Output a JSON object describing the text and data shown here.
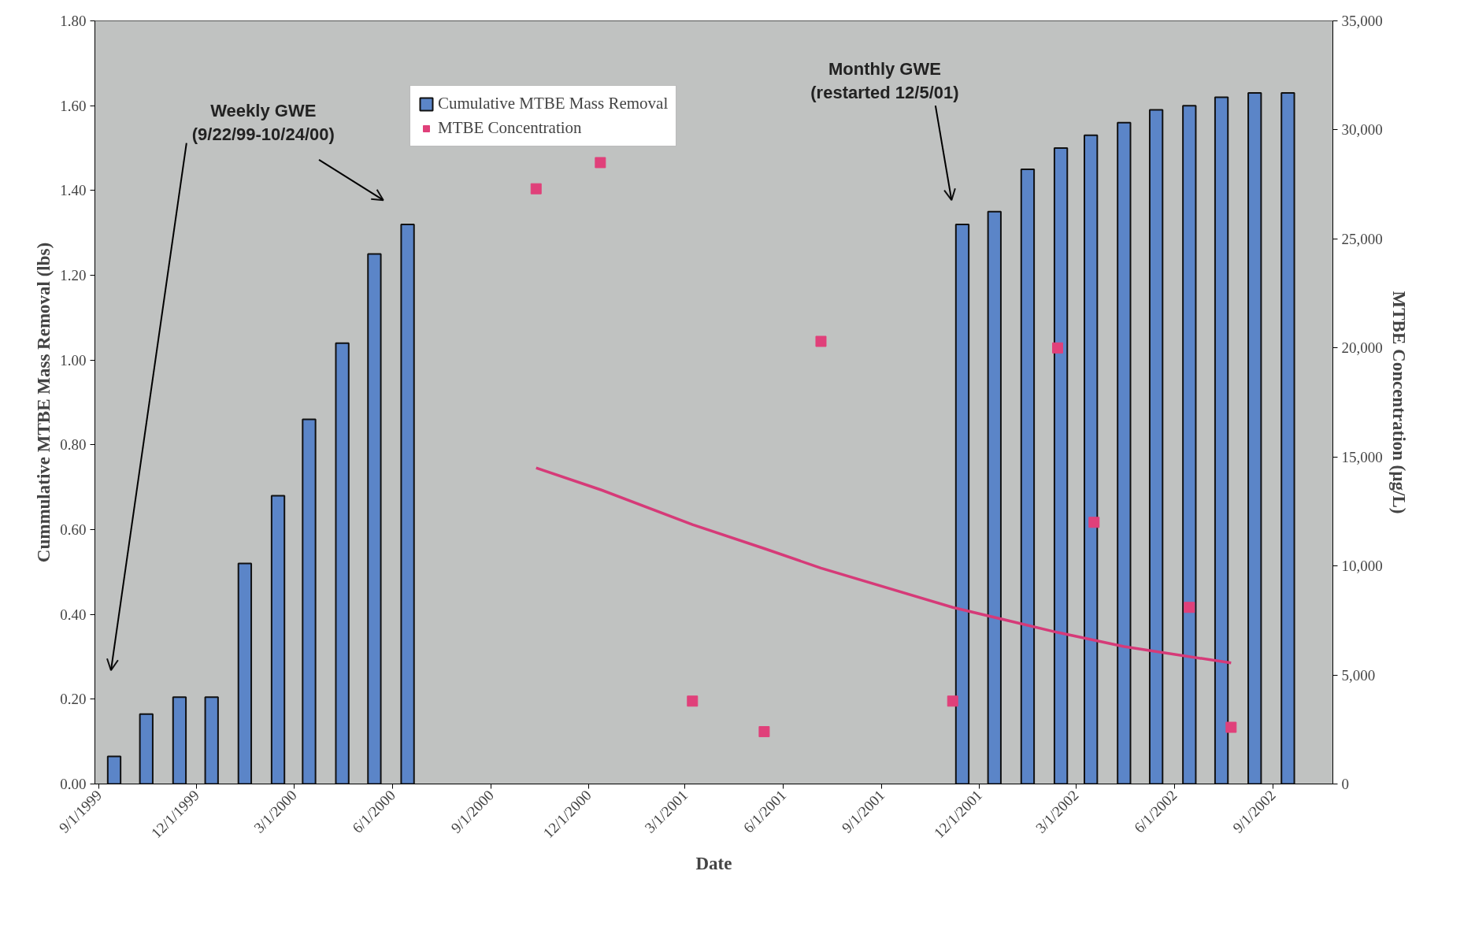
{
  "chart_data": {
    "type": "bar",
    "xlabel": "Date",
    "ylabel": "Cummulative MTBE Mass Removal (lbs)",
    "y2label": "MTBE Concentration (µg/L)",
    "xlim": [
      "1999-08-28",
      "2002-10-27"
    ],
    "xticks": [
      {
        "value": "1999-09-01",
        "label": "9/1/1999"
      },
      {
        "value": "1999-12-01",
        "label": "12/1/1999"
      },
      {
        "value": "2000-03-01",
        "label": "3/1/2000"
      },
      {
        "value": "2000-06-01",
        "label": "6/1/2000"
      },
      {
        "value": "2000-09-01",
        "label": "9/1/2000"
      },
      {
        "value": "2000-12-01",
        "label": "12/1/2000"
      },
      {
        "value": "2001-03-01",
        "label": "3/1/2001"
      },
      {
        "value": "2001-06-01",
        "label": "6/1/2001"
      },
      {
        "value": "2001-09-01",
        "label": "9/1/2001"
      },
      {
        "value": "2001-12-01",
        "label": "12/1/2001"
      },
      {
        "value": "2002-03-01",
        "label": "3/1/2002"
      },
      {
        "value": "2002-06-01",
        "label": "6/1/2002"
      },
      {
        "value": "2002-09-01",
        "label": "9/1/2002"
      }
    ],
    "ylim": [
      0,
      1.8
    ],
    "yticks": [
      {
        "value": 0,
        "label": "0.00"
      },
      {
        "value": 0.2,
        "label": "0.20"
      },
      {
        "value": 0.4,
        "label": "0.40"
      },
      {
        "value": 0.6,
        "label": "0.60"
      },
      {
        "value": 0.8,
        "label": "0.80"
      },
      {
        "value": 1.0,
        "label": "1.00"
      },
      {
        "value": 1.2,
        "label": "1.20"
      },
      {
        "value": 1.4,
        "label": "1.40"
      },
      {
        "value": 1.6,
        "label": "1.60"
      },
      {
        "value": 1.8,
        "label": "1.80"
      }
    ],
    "y2lim": [
      0,
      35000
    ],
    "y2ticks": [
      0,
      {
        "value": 5000,
        "label": "5,000"
      },
      {
        "value": 10000,
        "label": "10,000"
      },
      {
        "value": 15000,
        "label": "15,000"
      },
      {
        "value": 20000,
        "label": "20,000"
      },
      {
        "value": 25000,
        "label": "25,000"
      },
      {
        "value": 30000,
        "label": "30,000"
      },
      {
        "value": 35000,
        "label": "35,000"
      }
    ],
    "grid": false,
    "legend": "top",
    "series": [
      {
        "name": "Cumulative MTBE Mass Removal",
        "color": "#5b85c8",
        "x": [
          "1999-09-15",
          "1999-10-15",
          "1999-11-15",
          "1999-12-15",
          "2000-01-15",
          "2000-02-15",
          "2000-03-15",
          "2000-04-15",
          "2000-05-15",
          "2000-06-15",
          "2001-11-15",
          "2001-12-15",
          "2002-01-15",
          "2002-02-15",
          "2002-03-15",
          "2002-04-15",
          "2002-05-15",
          "2002-06-15",
          "2002-07-15",
          "2002-08-15",
          "2002-09-15"
        ],
        "values": [
          0.065,
          0.165,
          0.205,
          0.205,
          0.52,
          0.68,
          0.86,
          1.04,
          1.25,
          1.32,
          1.32,
          1.35,
          1.45,
          1.5,
          1.53,
          1.56,
          1.59,
          1.6,
          1.62,
          1.63,
          1.63
        ]
      },
      {
        "type": "scatter",
        "name": "MTBE Concentration",
        "color": "#e0407a",
        "axis": "y2",
        "marker": "square",
        "x": [
          "2000-10-13",
          "2000-12-12",
          "2001-03-08",
          "2001-05-14",
          "2001-07-06",
          "2001-11-06",
          "2002-02-12",
          "2002-03-18",
          "2002-06-15",
          "2002-07-24"
        ],
        "values": [
          27300,
          28500,
          3800,
          2400,
          20300,
          3800,
          20000,
          12000,
          8100,
          2600
        ]
      },
      {
        "type": "line",
        "color": "#d63a78",
        "axis": "y2",
        "x": [
          "2000-10-13",
          "2000-12-12",
          "2001-03-08",
          "2001-05-14",
          "2001-07-06",
          "2001-11-06",
          "2002-02-12",
          "2002-04-15",
          "2002-07-24"
        ],
        "values": [
          14500,
          13500,
          11900,
          10800,
          9900,
          8100,
          6950,
          6300,
          5550
        ]
      }
    ],
    "annotations": [
      "Weekly GWE\n(9/22/99-10/24/00)",
      "Monthly GWE\n(restarted 12/5/01)"
    ]
  }
}
